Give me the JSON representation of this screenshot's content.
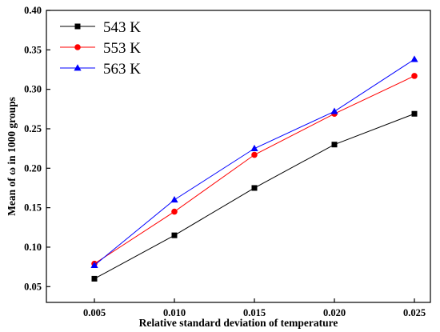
{
  "chart_data": {
    "type": "line",
    "xlabel": "Relative standard deviation of temperature",
    "ylabel": "Mean of ω in 1000 groups",
    "x": [
      0.005,
      0.01,
      0.015,
      0.02,
      0.025
    ],
    "x_tick_labels": [
      "0.005",
      "0.010",
      "0.015",
      "0.020",
      "0.025"
    ],
    "xlim": [
      0.002,
      0.026
    ],
    "ylim": [
      0.03,
      0.4
    ],
    "y_ticks": [
      0.05,
      0.1,
      0.15,
      0.2,
      0.25,
      0.3,
      0.35,
      0.4
    ],
    "y_tick_labels": [
      "0.05",
      "0.10",
      "0.15",
      "0.20",
      "0.25",
      "0.30",
      "0.35",
      "0.40"
    ],
    "grid": false,
    "legend_position": "top-left",
    "series": [
      {
        "name": "543 K",
        "color": "#000000",
        "marker": "square",
        "values": [
          0.06,
          0.115,
          0.175,
          0.23,
          0.269
        ]
      },
      {
        "name": "553 K",
        "color": "#ff0000",
        "marker": "circle",
        "values": [
          0.079,
          0.145,
          0.217,
          0.269,
          0.317
        ]
      },
      {
        "name": "563 K",
        "color": "#0000ff",
        "marker": "triangle",
        "values": [
          0.077,
          0.16,
          0.225,
          0.272,
          0.338
        ]
      }
    ]
  }
}
